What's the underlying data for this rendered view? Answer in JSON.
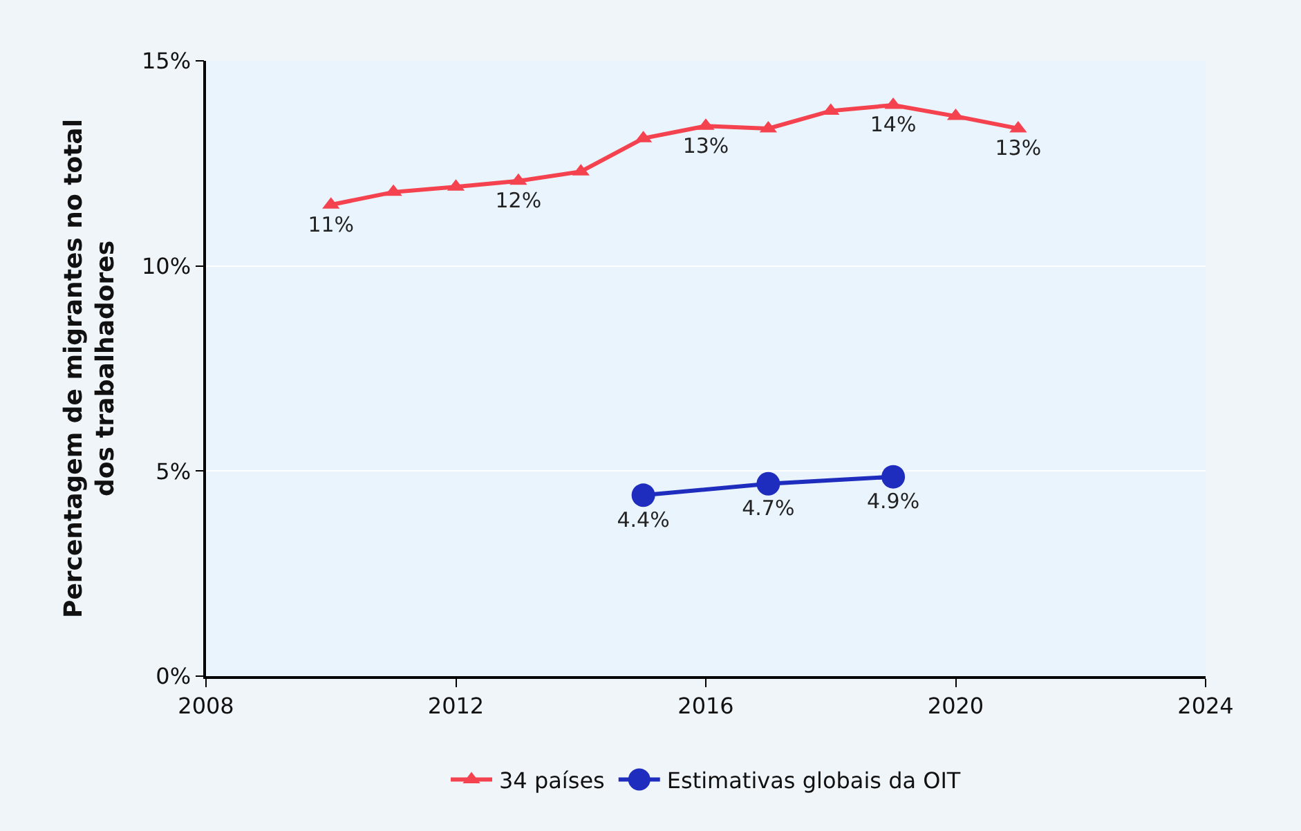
{
  "chart_data": {
    "type": "line",
    "ylabel": "Percentagem de migrantes no total\ndos trabalhadores",
    "xlim": [
      2008,
      2024
    ],
    "xticks": [
      2008,
      2012,
      2016,
      2020,
      2024
    ],
    "ylim": [
      0,
      15
    ],
    "yticks": [
      {
        "value": 0,
        "label": "0%"
      },
      {
        "value": 5,
        "label": "5%"
      },
      {
        "value": 10,
        "label": "10%"
      },
      {
        "value": 15,
        "label": "15%"
      }
    ],
    "grid": "y",
    "legend": "bottom",
    "series": [
      {
        "name": "34 países",
        "color": "#f5424f",
        "marker": "triangle",
        "x": [
          2010,
          2011,
          2012,
          2013,
          2014,
          2015,
          2016,
          2017,
          2018,
          2019,
          2020,
          2021
        ],
        "values": [
          11.49,
          11.8,
          11.93,
          12.07,
          12.3,
          13.11,
          13.41,
          13.35,
          13.78,
          13.92,
          13.65,
          13.35
        ],
        "value_labels": [
          "11%",
          null,
          null,
          "12%",
          null,
          null,
          "13%",
          null,
          null,
          "14%",
          null,
          "13%"
        ]
      },
      {
        "name": "Estimativas globais da OIT",
        "color": "#1f2dbe",
        "marker": "circle",
        "x": [
          2015,
          2017,
          2019
        ],
        "values": [
          4.41,
          4.69,
          4.86
        ],
        "value_labels": [
          "4.4%",
          "4.7%",
          "4.9%"
        ]
      }
    ]
  }
}
